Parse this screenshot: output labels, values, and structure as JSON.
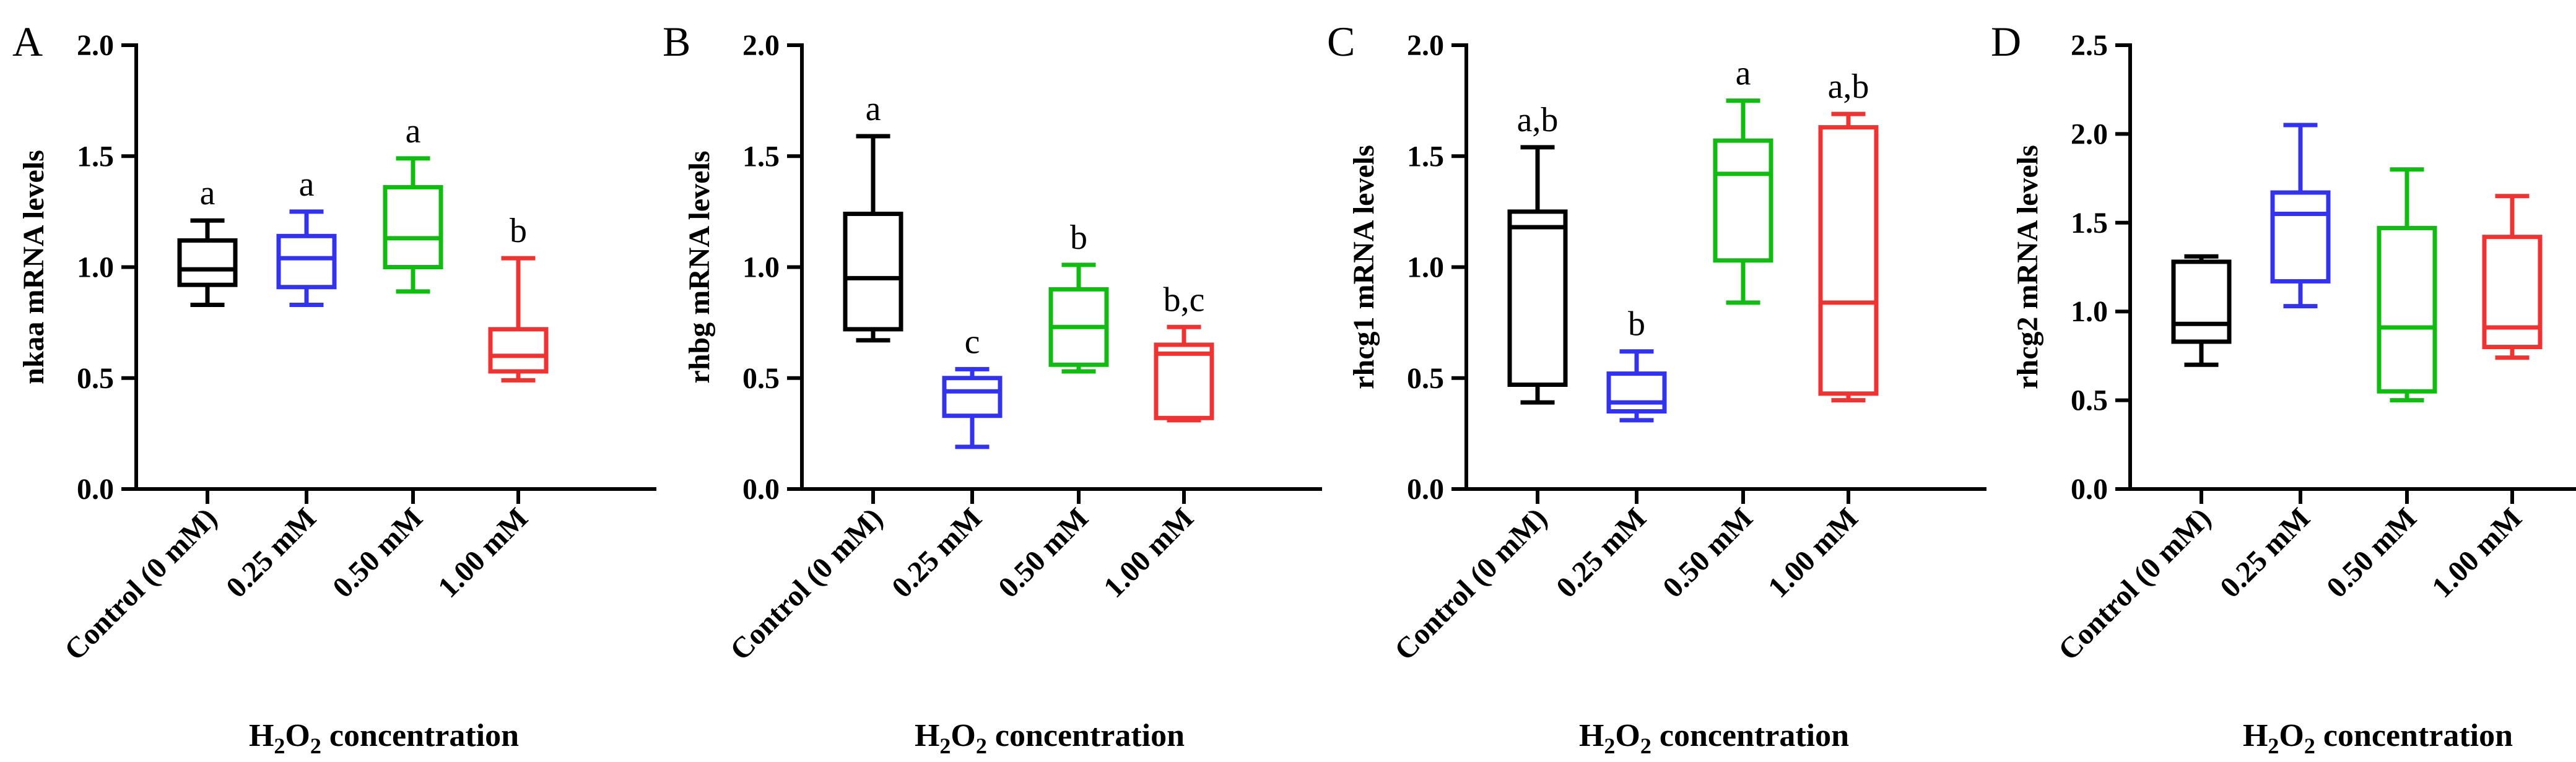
{
  "x_title": {
    "prefix": "H",
    "sub1": "2",
    "mid": "O",
    "sub2": "2",
    "suffix": " concentration"
  },
  "categories": [
    "Control (0 mM)",
    "0.25 mM",
    "0.50 mM",
    "1.00 mM"
  ],
  "series_colors": [
    "#000000",
    "#3333ee",
    "#11bb11",
    "#ee3333"
  ],
  "chart_data": [
    {
      "type": "boxplot",
      "panel": "A",
      "ylabel": "nkaa mRNA levels",
      "xlabel": "H2O2 concentration",
      "ylim": [
        0,
        2.0
      ],
      "yticks": [
        "0.0",
        "0.5",
        "1.0",
        "1.5",
        "2.0"
      ],
      "categories": [
        "Control (0 mM)",
        "0.25 mM",
        "0.50 mM",
        "1.00 mM"
      ],
      "boxes": [
        {
          "min": 0.83,
          "q1": 0.92,
          "median": 0.99,
          "q3": 1.12,
          "max": 1.21,
          "label": "a"
        },
        {
          "min": 0.83,
          "q1": 0.91,
          "median": 1.04,
          "q3": 1.14,
          "max": 1.25,
          "label": "a"
        },
        {
          "min": 0.89,
          "q1": 1.0,
          "median": 1.13,
          "q3": 1.36,
          "max": 1.49,
          "label": "a"
        },
        {
          "min": 0.49,
          "q1": 0.53,
          "median": 0.6,
          "q3": 0.72,
          "max": 1.04,
          "label": "b"
        }
      ]
    },
    {
      "type": "boxplot",
      "panel": "B",
      "ylabel": "rhbg mRNA levels",
      "xlabel": "H2O2 concentration",
      "ylim": [
        0,
        2.0
      ],
      "yticks": [
        "0.0",
        "0.5",
        "1.0",
        "1.5",
        "2.0"
      ],
      "categories": [
        "Control (0 mM)",
        "0.25 mM",
        "0.50 mM",
        "1.00 mM"
      ],
      "boxes": [
        {
          "min": 0.67,
          "q1": 0.72,
          "median": 0.95,
          "q3": 1.24,
          "max": 1.59,
          "label": "a"
        },
        {
          "min": 0.19,
          "q1": 0.33,
          "median": 0.44,
          "q3": 0.5,
          "max": 0.54,
          "label": "c"
        },
        {
          "min": 0.53,
          "q1": 0.56,
          "median": 0.73,
          "q3": 0.9,
          "max": 1.01,
          "label": "b"
        },
        {
          "min": 0.31,
          "q1": 0.32,
          "median": 0.61,
          "q3": 0.65,
          "max": 0.73,
          "label": "b,c"
        }
      ]
    },
    {
      "type": "boxplot",
      "panel": "C",
      "ylabel": "rhcg1 mRNA levels",
      "xlabel": "H2O2 concentration",
      "ylim": [
        0,
        2.0
      ],
      "yticks": [
        "0.0",
        "0.5",
        "1.0",
        "1.5",
        "2.0"
      ],
      "categories": [
        "Control (0 mM)",
        "0.25 mM",
        "0.50 mM",
        "1.00 mM"
      ],
      "boxes": [
        {
          "min": 0.39,
          "q1": 0.47,
          "median": 1.18,
          "q3": 1.25,
          "max": 1.54,
          "label": "a,b"
        },
        {
          "min": 0.31,
          "q1": 0.35,
          "median": 0.39,
          "q3": 0.52,
          "max": 0.62,
          "label": "b"
        },
        {
          "min": 0.84,
          "q1": 1.03,
          "median": 1.42,
          "q3": 1.57,
          "max": 1.75,
          "label": "a"
        },
        {
          "min": 0.4,
          "q1": 0.43,
          "median": 0.84,
          "q3": 1.63,
          "max": 1.69,
          "label": "a,b"
        }
      ]
    },
    {
      "type": "boxplot",
      "panel": "D",
      "ylabel": "rhcg2 mRNA levels",
      "xlabel": "H2O2 concentration",
      "ylim": [
        0,
        2.5
      ],
      "yticks": [
        "0.0",
        "0.5",
        "1.0",
        "1.5",
        "2.0",
        "2.5"
      ],
      "categories": [
        "Control (0 mM)",
        "0.25 mM",
        "0.50 mM",
        "1.00 mM"
      ],
      "boxes": [
        {
          "min": 0.7,
          "q1": 0.83,
          "median": 0.93,
          "q3": 1.28,
          "max": 1.31,
          "label": ""
        },
        {
          "min": 1.03,
          "q1": 1.17,
          "median": 1.55,
          "q3": 1.67,
          "max": 2.05,
          "label": ""
        },
        {
          "min": 0.5,
          "q1": 0.55,
          "median": 0.91,
          "q3": 1.47,
          "max": 1.8,
          "label": ""
        },
        {
          "min": 0.74,
          "q1": 0.8,
          "median": 0.91,
          "q3": 1.42,
          "max": 1.65,
          "label": ""
        }
      ]
    }
  ]
}
